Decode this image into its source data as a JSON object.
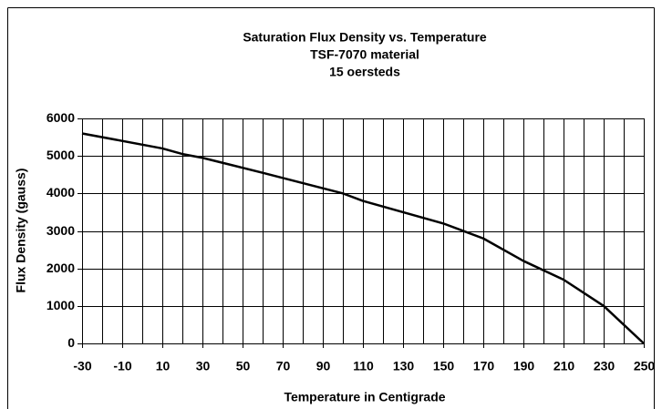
{
  "chart_data": {
    "type": "line",
    "title": [
      "Saturation Flux Density vs. Temperature",
      "TSF-7070 material",
      "15 oersteds"
    ],
    "x_label": "Temperature in Centigrade",
    "y_label": "Flux Density (gauss)",
    "x": [
      -30,
      10,
      20,
      30,
      60,
      100,
      110,
      150,
      170,
      190,
      210,
      230,
      240,
      250
    ],
    "series": [
      {
        "name": "Saturation flux density",
        "color": "#000000",
        "values": [
          5600,
          5200,
          5050,
          4950,
          4550,
          4000,
          3800,
          3200,
          2800,
          2200,
          1700,
          1000,
          500,
          0
        ]
      }
    ],
    "xlim": [
      -30,
      250
    ],
    "xticks": [
      -30,
      -10,
      10,
      30,
      50,
      70,
      90,
      110,
      130,
      150,
      170,
      190,
      210,
      230,
      250
    ],
    "x_minor_grid": [
      -20,
      0,
      20,
      40,
      60,
      80,
      100,
      120,
      140,
      160,
      180,
      200,
      220,
      240
    ],
    "ylim": [
      0,
      6000
    ],
    "yticks": [
      0,
      1000,
      2000,
      3000,
      4000,
      5000,
      6000
    ],
    "grid": true
  }
}
